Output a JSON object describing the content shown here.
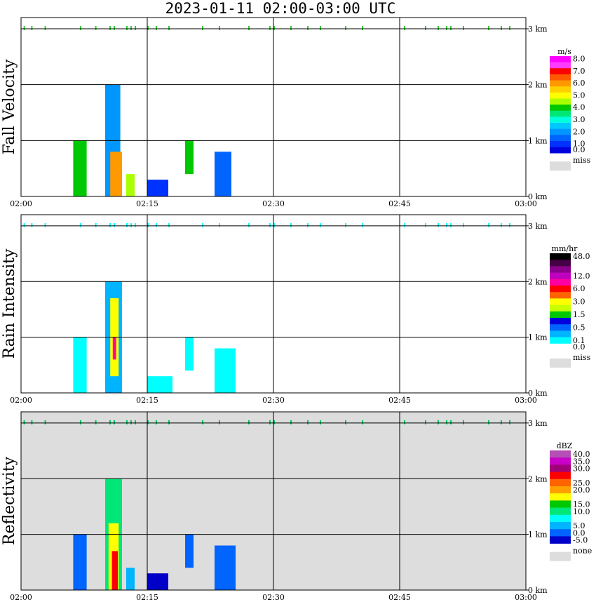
{
  "title": "2023-01-11   02:00-03:00 UTC",
  "chart_data": [
    {
      "type": "heatmap",
      "ylabel": "Fall Velocity",
      "x_ticks": [
        "02:00",
        "02:15",
        "02:30",
        "02:45",
        "03:00"
      ],
      "y_ticks": [
        "0 km",
        "1 km",
        "2 km",
        "3 km"
      ],
      "ylim_km": [
        0,
        3.2
      ],
      "xlim_min": [
        0,
        60
      ],
      "grid": true,
      "colorbar": {
        "units": "m/s",
        "levels": [
          {
            "label": "8.0",
            "color": "#ff00ff"
          },
          {
            "label": "",
            "color": "#ff3cff"
          },
          {
            "label": "7.0",
            "color": "#ff0000"
          },
          {
            "label": "",
            "color": "#ff5a00"
          },
          {
            "label": "6.0",
            "color": "#ff9900"
          },
          {
            "label": "",
            "color": "#ffd000"
          },
          {
            "label": "5.0",
            "color": "#ffff00"
          },
          {
            "label": "",
            "color": "#aaff00"
          },
          {
            "label": "4.0",
            "color": "#00c800"
          },
          {
            "label": "",
            "color": "#00e676"
          },
          {
            "label": "3.0",
            "color": "#00ffdc"
          },
          {
            "label": "",
            "color": "#00c8ff"
          },
          {
            "label": "2.0",
            "color": "#0096ff"
          },
          {
            "label": "",
            "color": "#0064ff"
          },
          {
            "label": "1.0",
            "color": "#0032ff"
          },
          {
            "label": "0.0",
            "color": "#0000dc"
          }
        ],
        "missing_label": "miss",
        "missing_color": "#dddddd"
      },
      "background": "#ffffff",
      "cloud_marks": {
        "y_km": 3.0,
        "x_min": [
          0.3,
          1.2,
          2.8,
          7.0,
          8.8,
          10.5,
          11.0,
          12.5,
          13.0,
          13.5,
          15.0,
          16.0,
          17.5,
          21.5,
          23.5,
          27.0,
          29.5,
          30.0,
          32.0,
          34.0,
          35.5,
          38.5,
          40.5,
          45.5,
          48.0,
          49.5,
          50.5,
          51.0,
          52.5,
          55.5,
          57.0,
          58.0
        ],
        "color": "#33cc33"
      },
      "echoes": [
        {
          "x": [
            6.2,
            7.8
          ],
          "z": [
            0.0,
            1.0
          ],
          "color": "#00c800"
        },
        {
          "x": [
            10.0,
            11.8
          ],
          "z": [
            0.0,
            2.0
          ],
          "color": "#0096ff"
        },
        {
          "x": [
            10.6,
            12.0
          ],
          "z": [
            0.0,
            0.8
          ],
          "color": "#ff9900"
        },
        {
          "x": [
            12.5,
            13.5
          ],
          "z": [
            0.0,
            0.4
          ],
          "color": "#aaff00"
        },
        {
          "x": [
            15.0,
            17.5
          ],
          "z": [
            0.0,
            0.3
          ],
          "color": "#0032ff"
        },
        {
          "x": [
            19.5,
            20.5
          ],
          "z": [
            0.4,
            1.0
          ],
          "color": "#00c800"
        },
        {
          "x": [
            23.0,
            25.0
          ],
          "z": [
            0.0,
            0.8
          ],
          "color": "#0064ff"
        }
      ]
    },
    {
      "type": "heatmap",
      "ylabel": "Rain Intensity",
      "x_ticks": [
        "02:00",
        "02:15",
        "02:30",
        "02:45",
        "03:00"
      ],
      "y_ticks": [
        "0 km",
        "1 km",
        "2 km",
        "3 km"
      ],
      "ylim_km": [
        0,
        3.2
      ],
      "xlim_min": [
        0,
        60
      ],
      "grid": true,
      "colorbar": {
        "units": "mm/hr",
        "levels": [
          {
            "label": "48.0",
            "color": "#000000"
          },
          {
            "label": "",
            "color": "#460046"
          },
          {
            "label": "",
            "color": "#8c008c"
          },
          {
            "label": "12.0",
            "color": "#be00be"
          },
          {
            "label": "",
            "color": "#ff00a0"
          },
          {
            "label": "6.0",
            "color": "#ff0000"
          },
          {
            "label": "",
            "color": "#ff6400"
          },
          {
            "label": "3.0",
            "color": "#ffff00"
          },
          {
            "label": "",
            "color": "#c8ff00"
          },
          {
            "label": "1.5",
            "color": "#00c800"
          },
          {
            "label": "",
            "color": "#0000dc"
          },
          {
            "label": "0.5",
            "color": "#0064ff"
          },
          {
            "label": "",
            "color": "#00b4ff"
          },
          {
            "label": "0.1",
            "color": "#00ffff"
          },
          {
            "label": "0.0",
            "color": "#ffffff"
          }
        ],
        "missing_label": "miss",
        "missing_color": "#dddddd"
      },
      "background": "#ffffff",
      "cloud_marks": {
        "y_km": 3.0,
        "x_min": [
          0.3,
          1.2,
          2.8,
          7.0,
          8.8,
          10.5,
          11.0,
          12.5,
          13.0,
          13.5,
          15.0,
          16.0,
          17.5,
          21.5,
          23.5,
          27.0,
          29.5,
          30.0,
          32.0,
          34.0,
          35.5,
          38.5,
          40.5,
          45.5,
          48.0,
          49.5,
          50.5,
          51.0,
          52.5,
          55.5,
          57.0,
          58.0
        ],
        "color": "#00ffff"
      },
      "echoes": [
        {
          "x": [
            6.2,
            7.8
          ],
          "z": [
            0.0,
            1.0
          ],
          "color": "#00ffff"
        },
        {
          "x": [
            10.0,
            12.0
          ],
          "z": [
            0.0,
            2.0
          ],
          "color": "#00b4ff"
        },
        {
          "x": [
            10.6,
            11.6
          ],
          "z": [
            0.3,
            1.7
          ],
          "color": "#ffff00"
        },
        {
          "x": [
            10.9,
            11.3
          ],
          "z": [
            0.6,
            1.0
          ],
          "color": "#ff00a0"
        },
        {
          "x": [
            15.0,
            18.0
          ],
          "z": [
            0.0,
            0.3
          ],
          "color": "#00ffff"
        },
        {
          "x": [
            19.5,
            20.5
          ],
          "z": [
            0.4,
            1.0
          ],
          "color": "#00ffff"
        },
        {
          "x": [
            23.0,
            25.5
          ],
          "z": [
            0.0,
            0.8
          ],
          "color": "#00ffff"
        }
      ]
    },
    {
      "type": "heatmap",
      "ylabel": "Reflectivity",
      "x_ticks": [
        "02:00",
        "02:15",
        "02:30",
        "02:45",
        "03:00"
      ],
      "y_ticks": [
        "0 km",
        "1 km",
        "2 km",
        "3 km"
      ],
      "ylim_km": [
        0,
        3.2
      ],
      "xlim_min": [
        0,
        60
      ],
      "grid": true,
      "colorbar": {
        "units": "dBZ",
        "levels": [
          {
            "label": "40.0",
            "color": "#b450b4"
          },
          {
            "label": "35.0",
            "color": "#c800c8"
          },
          {
            "label": "30.0",
            "color": "#a00078"
          },
          {
            "label": "",
            "color": "#ff0000"
          },
          {
            "label": "25.0",
            "color": "#ff6400"
          },
          {
            "label": "20.0",
            "color": "#ffa000"
          },
          {
            "label": "",
            "color": "#ffff00"
          },
          {
            "label": "15.0",
            "color": "#00c800"
          },
          {
            "label": "10.0",
            "color": "#00e678"
          },
          {
            "label": "",
            "color": "#00ffff"
          },
          {
            "label": "5.0",
            "color": "#00b4ff"
          },
          {
            "label": "0.0",
            "color": "#0064ff"
          },
          {
            "label": "-5.0",
            "color": "#0000c8"
          }
        ],
        "missing_label": "none",
        "missing_color": "#dddddd"
      },
      "background": "#dddddd",
      "cloud_marks": {
        "y_km": 3.0,
        "x_min": [
          0.3,
          1.2,
          2.8,
          7.0,
          8.8,
          10.5,
          11.0,
          12.5,
          13.0,
          13.5,
          15.0,
          16.0,
          17.5,
          21.5,
          23.5,
          27.0,
          29.5,
          30.0,
          32.0,
          34.0,
          35.5,
          38.5,
          40.5,
          45.5,
          48.0,
          49.5,
          50.5,
          51.0,
          52.5,
          55.5,
          57.0,
          58.0
        ],
        "color": "#00c864"
      },
      "echoes": [
        {
          "x": [
            6.2,
            7.8
          ],
          "z": [
            0.0,
            1.0
          ],
          "color": "#0064ff"
        },
        {
          "x": [
            10.0,
            12.0
          ],
          "z": [
            0.0,
            2.0
          ],
          "color": "#00e678"
        },
        {
          "x": [
            10.4,
            11.6
          ],
          "z": [
            0.0,
            1.2
          ],
          "color": "#ffff00"
        },
        {
          "x": [
            10.8,
            11.5
          ],
          "z": [
            0.0,
            0.7
          ],
          "color": "#ff0000"
        },
        {
          "x": [
            12.5,
            13.5
          ],
          "z": [
            0.0,
            0.4
          ],
          "color": "#00b4ff"
        },
        {
          "x": [
            15.0,
            17.5
          ],
          "z": [
            0.0,
            0.3
          ],
          "color": "#0000c8"
        },
        {
          "x": [
            19.5,
            20.5
          ],
          "z": [
            0.4,
            1.0
          ],
          "color": "#0064ff"
        },
        {
          "x": [
            23.0,
            25.5
          ],
          "z": [
            0.0,
            0.8
          ],
          "color": "#0064ff"
        }
      ]
    }
  ]
}
